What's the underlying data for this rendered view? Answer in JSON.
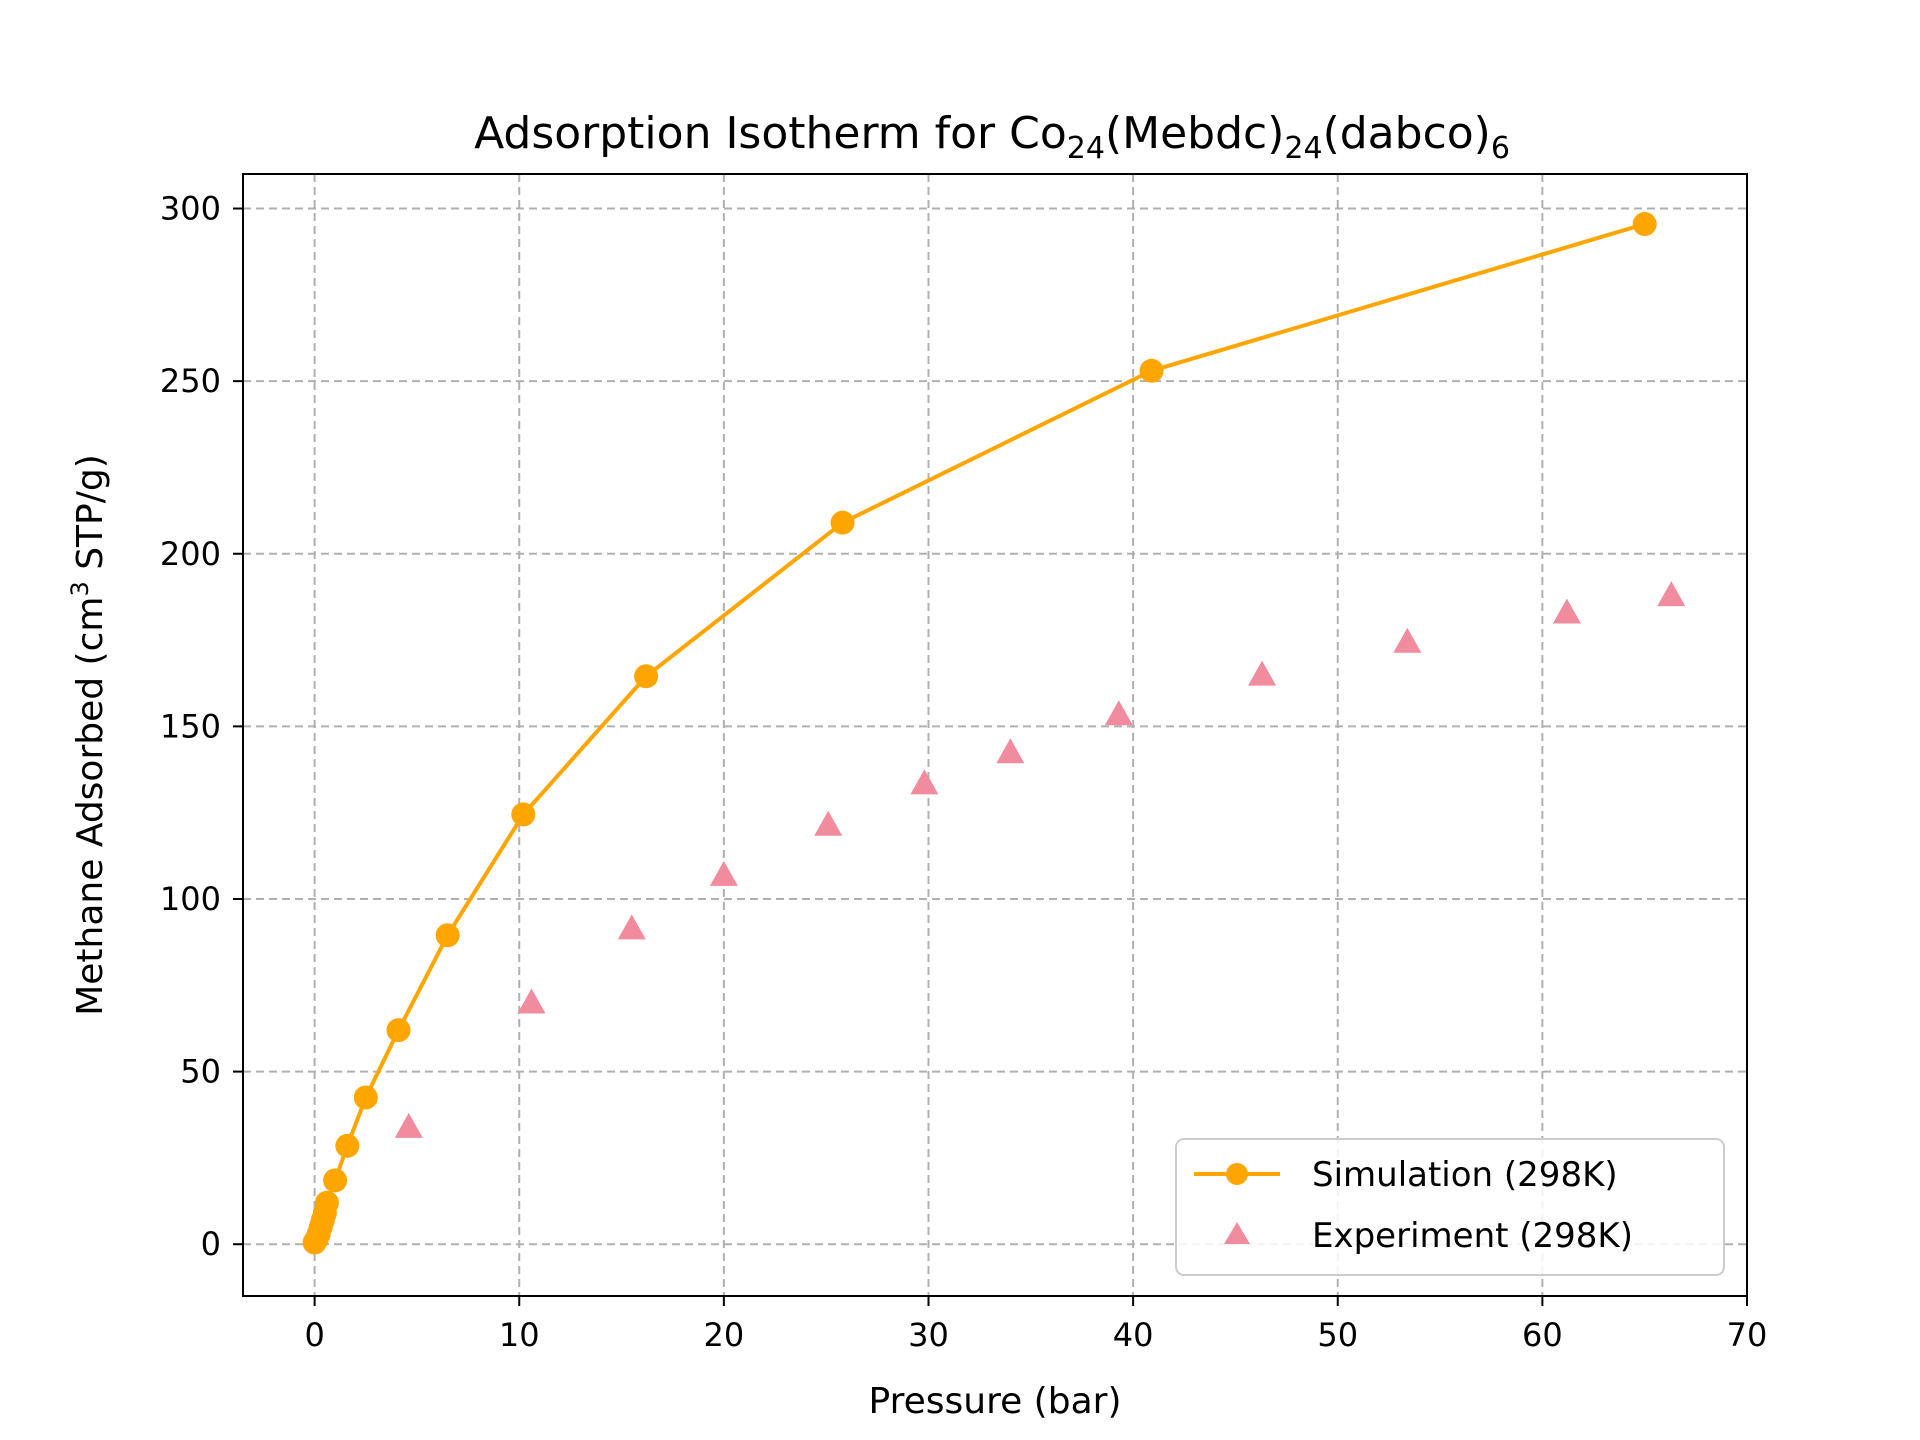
{
  "chart_data": {
    "type": "line",
    "title": {
      "main": "Adsorption Isotherm for Co",
      "sub1": "24",
      "mid1": "(Mebdc)",
      "sub2": "24",
      "mid2": "(dabco)",
      "sub3": "6"
    },
    "xlabel": "Pressure (bar)",
    "ylabel": {
      "pre": "Methane Adsorbed (cm",
      "sup": "3",
      "post": " STP/g)"
    },
    "xlim": [
      -3.5,
      70
    ],
    "ylim": [
      -15,
      310
    ],
    "xticks": [
      0,
      10,
      20,
      30,
      40,
      50,
      60,
      70
    ],
    "yticks": [
      0,
      50,
      100,
      150,
      200,
      250,
      300
    ],
    "grid": true,
    "legend_position": "lower-right",
    "series": [
      {
        "name": "Simulation (298K)",
        "style": "line-circle",
        "color": "#ffa500",
        "x": [
          0.0,
          0.1,
          0.2,
          0.3,
          0.4,
          0.5,
          0.6,
          1.0,
          1.6,
          2.5,
          4.1,
          6.5,
          10.2,
          16.2,
          25.8,
          40.9,
          65.0
        ],
        "y": [
          0.5,
          1.5,
          3.0,
          5.0,
          7.0,
          9.0,
          12.0,
          18.5,
          28.5,
          42.5,
          62.0,
          89.5,
          124.5,
          164.5,
          209.0,
          253.0,
          295.5
        ]
      },
      {
        "name": "Experiment (298K)",
        "style": "triangle",
        "color": "#f08c9e",
        "x": [
          4.6,
          10.6,
          15.5,
          20.0,
          25.1,
          29.8,
          34.0,
          39.3,
          46.3,
          53.4,
          61.2,
          66.3
        ],
        "y": [
          34.0,
          70.0,
          91.5,
          107.0,
          121.5,
          133.5,
          142.5,
          153.5,
          165.0,
          174.5,
          183.0,
          188.0
        ]
      }
    ]
  }
}
